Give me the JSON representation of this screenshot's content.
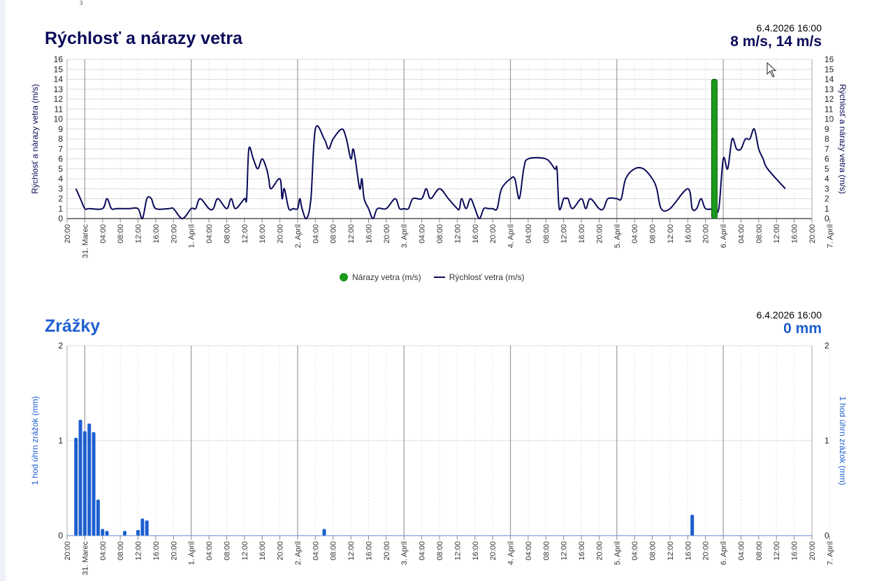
{
  "corner_text": "3",
  "wind": {
    "title": "Rýchlosť a nárazy vetra",
    "date": "6.4.2026 16:00",
    "value": "8 m/s, 14 m/s",
    "title_color": "#0a0a5a"
  },
  "precip": {
    "title": "Zrážky",
    "date": "6.4.2026 16:00",
    "value": "0 mm",
    "title_color": "#1e5fcf"
  },
  "legend": {
    "gusts": "Nárazy vetra (m/s)",
    "speed": "Rýchlosť vetra (m/s)"
  },
  "chart_data": [
    {
      "type": "line",
      "title": "Rýchlosť a nárazy vetra",
      "ylabel": "Rýchlosť a nárazy vetra (m/s)",
      "ylim": [
        0,
        16
      ],
      "yticks": [
        0,
        1,
        2,
        3,
        4,
        5,
        6,
        7,
        8,
        9,
        10,
        11,
        12,
        13,
        14,
        15,
        16
      ],
      "xlim_hours": [
        0,
        168
      ],
      "x_tick_labels": [
        "20:00",
        "31. Marec",
        "04:00",
        "08:00",
        "12:00",
        "16:00",
        "20:00",
        "1. Apríl",
        "04:00",
        "08:00",
        "12:00",
        "16:00",
        "20:00",
        "2. Apríl",
        "04:00",
        "08:00",
        "12:00",
        "16:00",
        "20:00",
        "3. Apríl",
        "04:00",
        "08:00",
        "12:00",
        "16:00",
        "20:00",
        "4. Apríl",
        "04:00",
        "08:00",
        "12:00",
        "16:00",
        "20:00",
        "5. Apríl",
        "04:00",
        "08:00",
        "12:00",
        "16:00",
        "20:00",
        "6. Apríl",
        "04:00",
        "08:00",
        "12:00",
        "16:00",
        "20:00",
        "7. Apríl"
      ],
      "grid": true,
      "legend": "bottom-center",
      "series": [
        {
          "name": "Rýchlosť vetra (m/s)",
          "color": "#0a0a5a",
          "x": [
            2,
            3,
            4,
            5,
            8,
            9,
            10,
            11,
            12,
            14,
            16,
            17,
            18,
            19,
            20,
            23,
            24,
            26,
            28,
            29,
            30,
            32,
            33,
            34,
            36,
            37,
            38,
            40,
            40.5,
            41,
            42,
            43,
            44,
            45,
            45.5,
            46,
            48,
            48.5,
            49,
            50,
            51,
            52,
            52.5,
            53,
            54,
            55,
            56,
            58,
            59,
            60,
            62,
            63,
            64,
            64.5,
            65,
            66,
            66.5,
            67,
            68,
            69,
            70,
            72,
            74,
            75,
            76,
            77,
            78,
            80,
            81,
            82,
            84,
            86,
            88,
            88.5,
            89,
            90,
            91,
            92,
            93,
            94,
            95,
            96,
            97,
            98,
            100,
            101,
            102,
            103,
            104,
            108,
            110,
            110.5,
            111,
            112,
            112.5,
            113,
            114,
            116,
            117,
            118,
            120,
            121,
            122,
            124,
            125,
            126,
            128,
            130,
            132,
            133,
            134,
            136,
            140,
            141,
            142,
            143,
            144,
            146,
            147,
            148,
            149,
            150,
            151,
            152,
            153,
            154,
            155,
            156,
            157,
            158,
            162
          ],
          "y": [
            3,
            2,
            1,
            1,
            1,
            2,
            1,
            1,
            1,
            1,
            1,
            0,
            2,
            2,
            1,
            1,
            1,
            0,
            1,
            1,
            2,
            1,
            1,
            2,
            1,
            2,
            1,
            2,
            2,
            7,
            6,
            5,
            6,
            5,
            4,
            3,
            4,
            2,
            3,
            1,
            1,
            1,
            2,
            1,
            0,
            2,
            9,
            8,
            7,
            8,
            9,
            8,
            6,
            7,
            6,
            3,
            4,
            2,
            1,
            0,
            1,
            1,
            2,
            1,
            1,
            1,
            2,
            2,
            3,
            2,
            3,
            2,
            1,
            1,
            2,
            1,
            2,
            1,
            0,
            1,
            1,
            1,
            1,
            3,
            4,
            4,
            2,
            5,
            6,
            6,
            5,
            5,
            1,
            2,
            2,
            2,
            1,
            2,
            1,
            2,
            1,
            1,
            2,
            2,
            2,
            4,
            5,
            5,
            4,
            3,
            1,
            1,
            3,
            1,
            1,
            2,
            1,
            1,
            1,
            6,
            5,
            8,
            7,
            7,
            8,
            8,
            9,
            7,
            6,
            5,
            3
          ]
        },
        {
          "name": "Nárazy vetra (m/s)",
          "color": "#1a9a1a",
          "type": "bar",
          "x": [
            146
          ],
          "values": [
            14
          ]
        }
      ]
    },
    {
      "type": "bar",
      "title": "Zrážky",
      "ylabel": "1 hod úhrn zrážok (mm)",
      "ylim": [
        0,
        2
      ],
      "yticks": [
        0,
        1,
        2
      ],
      "xlim_hours": [
        0,
        168
      ],
      "grid": true,
      "series": [
        {
          "name": "1 hod úhrn zrážok (mm)",
          "color": "#1e5fcf",
          "x": [
            2,
            3,
            4,
            5,
            6,
            7,
            8,
            9,
            13,
            16,
            17,
            18,
            58,
            141
          ],
          "values": [
            1.03,
            1.22,
            1.1,
            1.18,
            1.09,
            0.38,
            0.07,
            0.05,
            0.05,
            0.06,
            0.18,
            0.16,
            0.07,
            0.22
          ]
        }
      ]
    }
  ]
}
